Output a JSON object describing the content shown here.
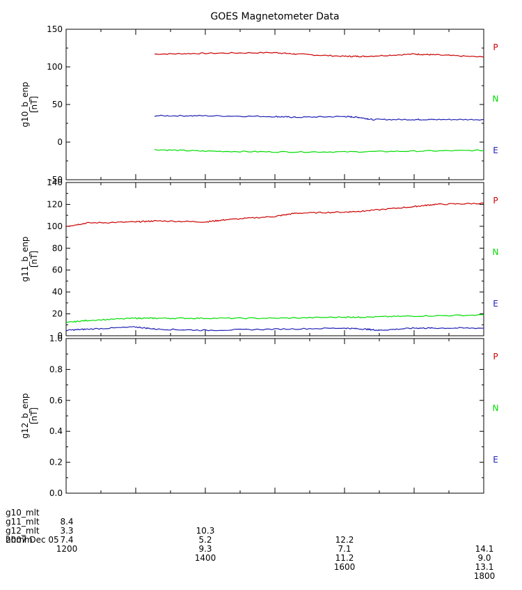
{
  "chart_data": {
    "type": "line",
    "title": "GOES Magnetometer Data",
    "x_range": [
      1200,
      1800
    ],
    "x_unit": "hhmm",
    "panels": [
      {
        "ylabel": "g10_b_enp",
        "yunit": "[nT]",
        "ylim": [
          -50,
          150
        ],
        "yticks": [
          "-50",
          "0",
          "50",
          "100",
          "150"
        ],
        "legend": [
          "P",
          "N",
          "E"
        ],
        "series": [
          {
            "name": "P",
            "color": "#cc0000",
            "x": [
              1327,
              1400,
              1500,
              1530,
              1600,
              1630,
              1700,
              1730,
              1800
            ],
            "y": [
              117,
              118,
              119,
              117,
              114,
              114,
              117,
              116,
              113
            ]
          },
          {
            "name": "N",
            "color": "#1f1fb4",
            "x": [
              1327,
              1400,
              1500,
              1530,
              1600,
              1620,
              1640,
              1700,
              1730,
              1800
            ],
            "y": [
              35,
              35,
              34,
              33,
              34,
              33,
              30,
              30,
              30,
              30
            ]
          },
          {
            "name": "E",
            "color": "#00dd00",
            "x": [
              1327,
              1400,
              1500,
              1600,
              1700,
              1800
            ],
            "y": [
              -10,
              -12,
              -13,
              -13,
              -12,
              -11
            ]
          }
        ]
      },
      {
        "ylabel": "g11_b_enp",
        "yunit": "[nT]",
        "ylim": [
          0,
          140
        ],
        "yticks": [
          "0",
          "20",
          "40",
          "60",
          "80",
          "100",
          "120",
          "140"
        ],
        "legend": [
          "P",
          "N",
          "E"
        ],
        "series": [
          {
            "name": "P",
            "color": "#cc0000",
            "x": [
              1200,
              1230,
              1300,
              1330,
              1400,
              1430,
              1500,
              1530,
              1600,
              1630,
              1700,
              1730,
              1800
            ],
            "y": [
              100,
              103,
              104,
              105,
              104,
              106,
              109,
              112,
              113,
              114,
              118,
              120,
              121
            ]
          },
          {
            "name": "N",
            "color": "#00dd00",
            "x": [
              1200,
              1230,
              1300,
              1330,
              1400,
              1500,
              1600,
              1630,
              1700,
              1800
            ],
            "y": [
              12,
              14,
              16,
              16,
              16,
              16,
              17,
              17,
              18,
              19
            ]
          },
          {
            "name": "E",
            "color": "#1f1fb4",
            "x": [
              1200,
              1230,
              1300,
              1330,
              1400,
              1500,
              1600,
              1630,
              1650,
              1700,
              1730,
              1800
            ],
            "y": [
              5,
              6,
              8,
              6,
              5,
              6,
              7,
              6,
              5,
              7,
              7,
              7
            ]
          }
        ]
      },
      {
        "ylabel": "g12_b_enp",
        "yunit": "[nT]",
        "ylim": [
          0,
          1
        ],
        "yticks": [
          "0.0",
          "0.2",
          "0.4",
          "0.6",
          "0.8",
          "1.0"
        ],
        "legend": [
          "P",
          "N",
          "E"
        ],
        "series": []
      }
    ]
  },
  "legend_colors": {
    "P": "#cc0000",
    "N": "#00dd00",
    "E": "#1f1fb4"
  },
  "footer": {
    "rows": [
      {
        "label": "g10_mlt",
        "values": [
          "8.4",
          "10.3",
          "12.2",
          "14.1"
        ]
      },
      {
        "label": "g11_mlt",
        "values": [
          "3.3",
          "5.2",
          "7.1",
          "9.0"
        ]
      },
      {
        "label": "g12_mlt",
        "values": [
          "7.4",
          "9.3",
          "11.2",
          "13.1"
        ]
      },
      {
        "label": "hhmm",
        "values": [
          "1200",
          "1400",
          "1600",
          "1800"
        ]
      }
    ],
    "date": "2007 Dec 05"
  }
}
